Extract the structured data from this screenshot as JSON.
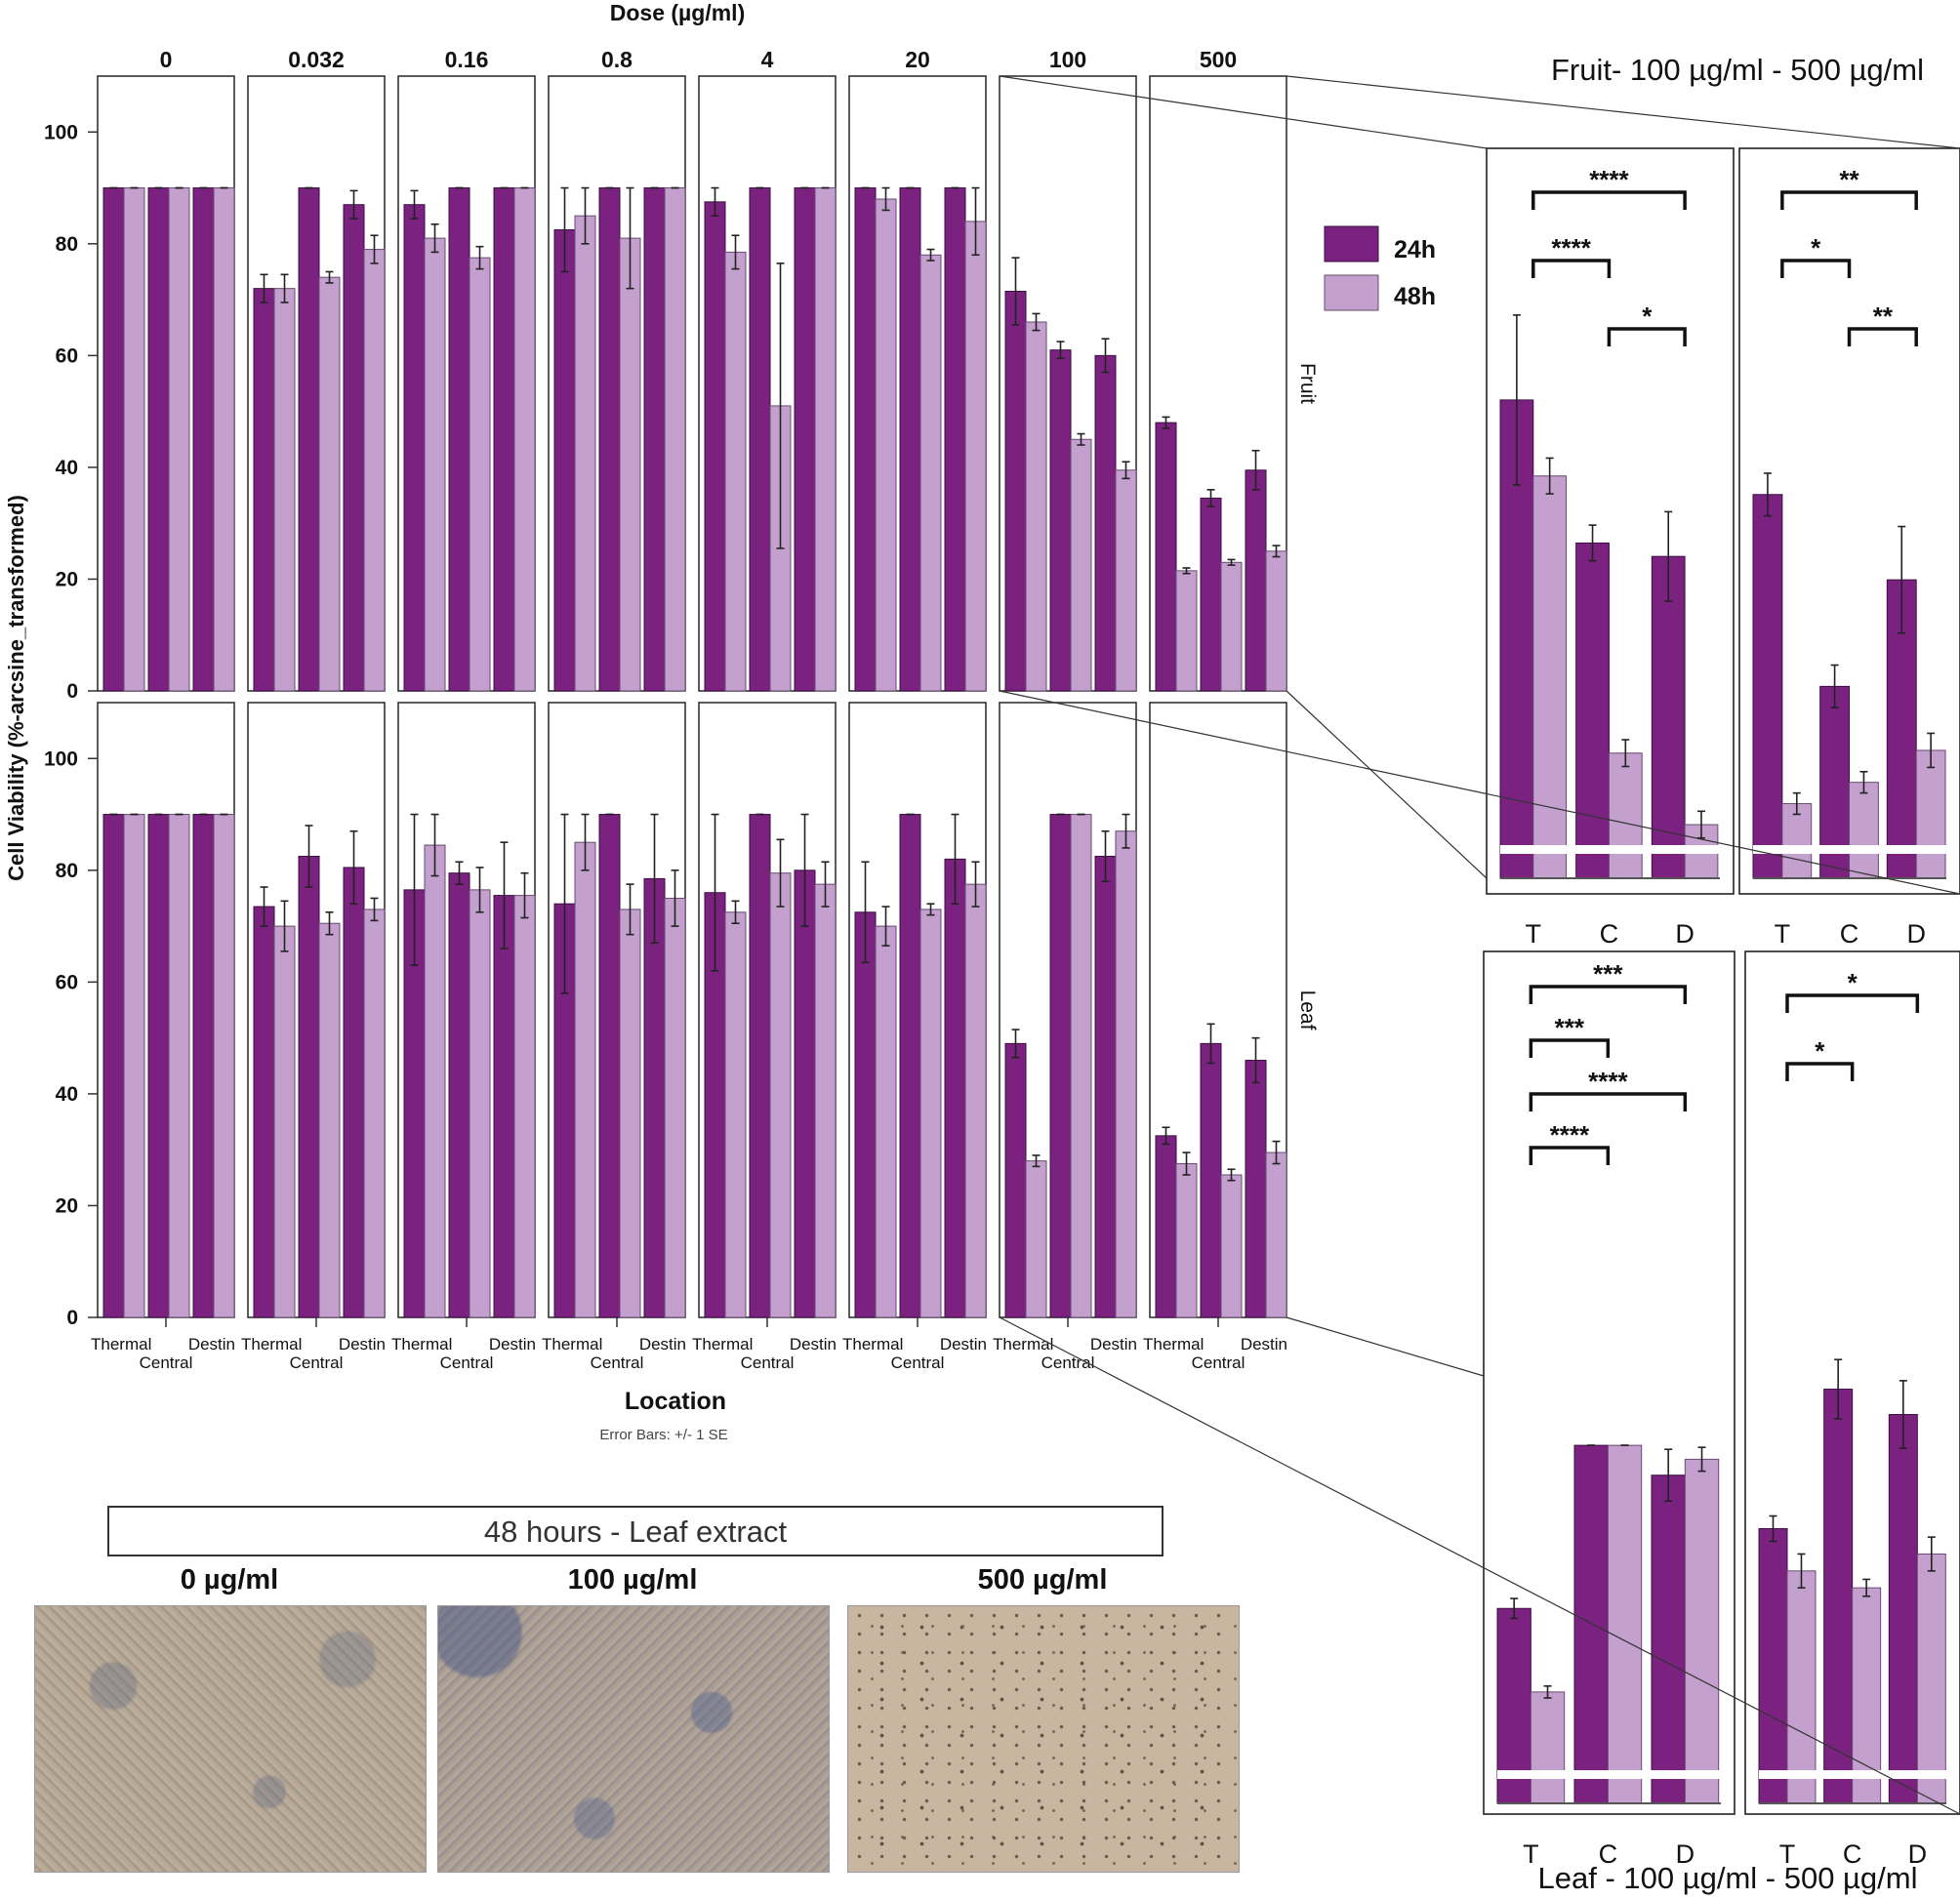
{
  "chart_data": {
    "type": "bar",
    "dose_title": "Dose (µg/ml)",
    "doses": [
      "0",
      "0.032",
      "0.16",
      "0.8",
      "4",
      "20",
      "100",
      "500"
    ],
    "ylabel": "Cell Viability (%-arcsine_transformed)",
    "xlabel": "Location",
    "note": "Error Bars: +/- 1 SE",
    "ylim": [
      0,
      110
    ],
    "yticks": [
      0,
      20,
      40,
      60,
      80,
      100
    ],
    "locations_top": [
      "Thermal",
      "Destin"
    ],
    "locations_bottom": [
      "Central"
    ],
    "legend": [
      {
        "label": "24h",
        "color": "#7b2281"
      },
      {
        "label": "48h",
        "color": "#c3a0cd"
      }
    ],
    "rows": [
      {
        "name": "Fruit",
        "panels": [
          {
            "dose": "0",
            "bars24": [
              90,
              90,
              90
            ],
            "err24": [
              0,
              0,
              0
            ],
            "bars48": [
              90,
              90,
              90
            ],
            "err48": [
              0,
              0,
              0
            ]
          },
          {
            "dose": "0.032",
            "bars24": [
              72,
              90,
              87
            ],
            "err24": [
              2.5,
              0,
              2.5
            ],
            "bars48": [
              72,
              74,
              79
            ],
            "err48": [
              2.5,
              1,
              2.5
            ]
          },
          {
            "dose": "0.16",
            "bars24": [
              87,
              90,
              90
            ],
            "err24": [
              2.5,
              0,
              0
            ],
            "bars48": [
              81,
              77.5,
              90
            ],
            "err48": [
              2.5,
              2,
              0
            ]
          },
          {
            "dose": "0.8",
            "bars24": [
              82.5,
              90,
              90
            ],
            "err24": [
              7.5,
              0,
              0
            ],
            "bars48": [
              85,
              81,
              90
            ],
            "err48": [
              5,
              9,
              0
            ]
          },
          {
            "dose": "4",
            "bars24": [
              87.5,
              90,
              90
            ],
            "err24": [
              2.5,
              0,
              0
            ],
            "bars48": [
              78.5,
              51,
              90
            ],
            "err48": [
              3,
              25.5,
              0
            ]
          },
          {
            "dose": "20",
            "bars24": [
              90,
              90,
              90
            ],
            "err24": [
              0,
              0,
              0
            ],
            "bars48": [
              88,
              78,
              84
            ],
            "err48": [
              2,
              1,
              6
            ]
          },
          {
            "dose": "100",
            "bars24": [
              71.5,
              61,
              60
            ],
            "err24": [
              6,
              1.5,
              3
            ],
            "bars48": [
              66,
              45,
              39.5
            ],
            "err48": [
              1.5,
              1,
              1.5
            ]
          },
          {
            "dose": "500",
            "bars24": [
              48,
              34.5,
              39.5
            ],
            "err24": [
              1,
              1.5,
              3.5
            ],
            "bars48": [
              21.5,
              23,
              25
            ],
            "err48": [
              0.5,
              0.5,
              1
            ]
          }
        ]
      },
      {
        "name": "Leaf",
        "panels": [
          {
            "dose": "0",
            "bars24": [
              90,
              90,
              90
            ],
            "err24": [
              0,
              0,
              0
            ],
            "bars48": [
              90,
              90,
              90
            ],
            "err48": [
              0,
              0,
              0
            ]
          },
          {
            "dose": "0.032",
            "bars24": [
              73.5,
              82.5,
              80.5
            ],
            "err24": [
              3.5,
              5.5,
              6.5
            ],
            "bars48": [
              70,
              70.5,
              73
            ],
            "err48": [
              4.5,
              2,
              2
            ]
          },
          {
            "dose": "0.16",
            "bars24": [
              76.5,
              79.5,
              75.5
            ],
            "err24": [
              13.5,
              2,
              9.5
            ],
            "bars48": [
              84.5,
              76.5,
              75.5
            ],
            "err48": [
              5.5,
              4,
              4
            ]
          },
          {
            "dose": "0.8",
            "bars24": [
              74,
              90,
              78.5
            ],
            "err24": [
              16,
              0,
              11.5
            ],
            "bars48": [
              85,
              73,
              75
            ],
            "err48": [
              5,
              4.5,
              5
            ]
          },
          {
            "dose": "4",
            "bars24": [
              76,
              90,
              80
            ],
            "err24": [
              14,
              0,
              10
            ],
            "bars48": [
              72.5,
              79.5,
              77.5
            ],
            "err48": [
              2,
              6,
              4
            ]
          },
          {
            "dose": "20",
            "bars24": [
              72.5,
              90,
              82
            ],
            "err24": [
              9,
              0,
              8
            ],
            "bars48": [
              70,
              73,
              77.5
            ],
            "err48": [
              3.5,
              1,
              4
            ]
          },
          {
            "dose": "100",
            "bars24": [
              49,
              90,
              82.5
            ],
            "err24": [
              2.5,
              0,
              4.5
            ],
            "bars48": [
              28,
              90,
              87
            ],
            "err48": [
              1,
              0,
              3
            ]
          },
          {
            "dose": "500",
            "bars24": [
              32.5,
              49,
              46
            ],
            "err24": [
              1.5,
              3.5,
              4
            ],
            "bars48": [
              27.5,
              25.5,
              29.5
            ],
            "err48": [
              2,
              1,
              2
            ]
          }
        ]
      }
    ],
    "zoom": {
      "fruit_title": "Fruit- 100 µg/ml  - 500 µg/ml",
      "leaf_title": "Leaf - 100 µg/ml - 500 µg/ml",
      "xlabels": [
        "T",
        "C",
        "D"
      ],
      "panels": [
        {
          "id": "fruit-100",
          "bars24": [
            53.5,
            37.5,
            36
          ],
          "err24": [
            9.5,
            2,
            5
          ],
          "bars48": [
            45,
            14,
            6
          ],
          "err48": [
            2,
            1.5,
            1.5
          ],
          "sig": [
            {
              "from": 0,
              "to": 2,
              "label": "****"
            },
            {
              "from": 0,
              "to": 1,
              "label": "****"
            },
            {
              "from": 1,
              "to": 2,
              "label": "*"
            }
          ]
        },
        {
          "id": "fruit-500",
          "bars24": [
            18,
            9,
            14
          ],
          "err24": [
            1,
            1,
            2.5
          ],
          "bars48": [
            3.5,
            4.5,
            6
          ],
          "err48": [
            0.5,
            0.5,
            0.8
          ],
          "sig": [
            {
              "from": 0,
              "to": 2,
              "label": "**"
            },
            {
              "from": 0,
              "to": 1,
              "label": "*"
            },
            {
              "from": 1,
              "to": 2,
              "label": "**"
            }
          ]
        },
        {
          "id": "leaf-100",
          "bars24": [
            49,
            90,
            82.5
          ],
          "err24": [
            2.5,
            0,
            6.5
          ],
          "bars48": [
            28,
            90,
            86.5
          ],
          "err48": [
            1.5,
            0,
            3
          ]
        },
        {
          "id": "leaf-500",
          "bars24": [
            32.5,
            49,
            46
          ],
          "err24": [
            1.5,
            3.5,
            4
          ],
          "bars48": [
            27.5,
            25.5,
            29.5
          ],
          "err48": [
            2,
            1,
            2
          ],
          "sig": [
            {
              "from": 0,
              "to": 2,
              "label": "*"
            },
            {
              "from": 0,
              "to": 1,
              "label": "*"
            }
          ]
        }
      ],
      "leaf100_sig": [
        {
          "from": 0,
          "to": 2,
          "label": "***"
        },
        {
          "from": 0,
          "to": 1,
          "label": "***"
        },
        {
          "from": 0,
          "to": 2,
          "label": "****"
        },
        {
          "from": 0,
          "to": 1,
          "label": "****"
        }
      ]
    }
  },
  "micrographs": {
    "banner": "48 hours - Leaf extract",
    "images": [
      {
        "label": "0 µg/ml"
      },
      {
        "label": "100 µg/ml"
      },
      {
        "label": "500 µg/ml"
      }
    ]
  }
}
